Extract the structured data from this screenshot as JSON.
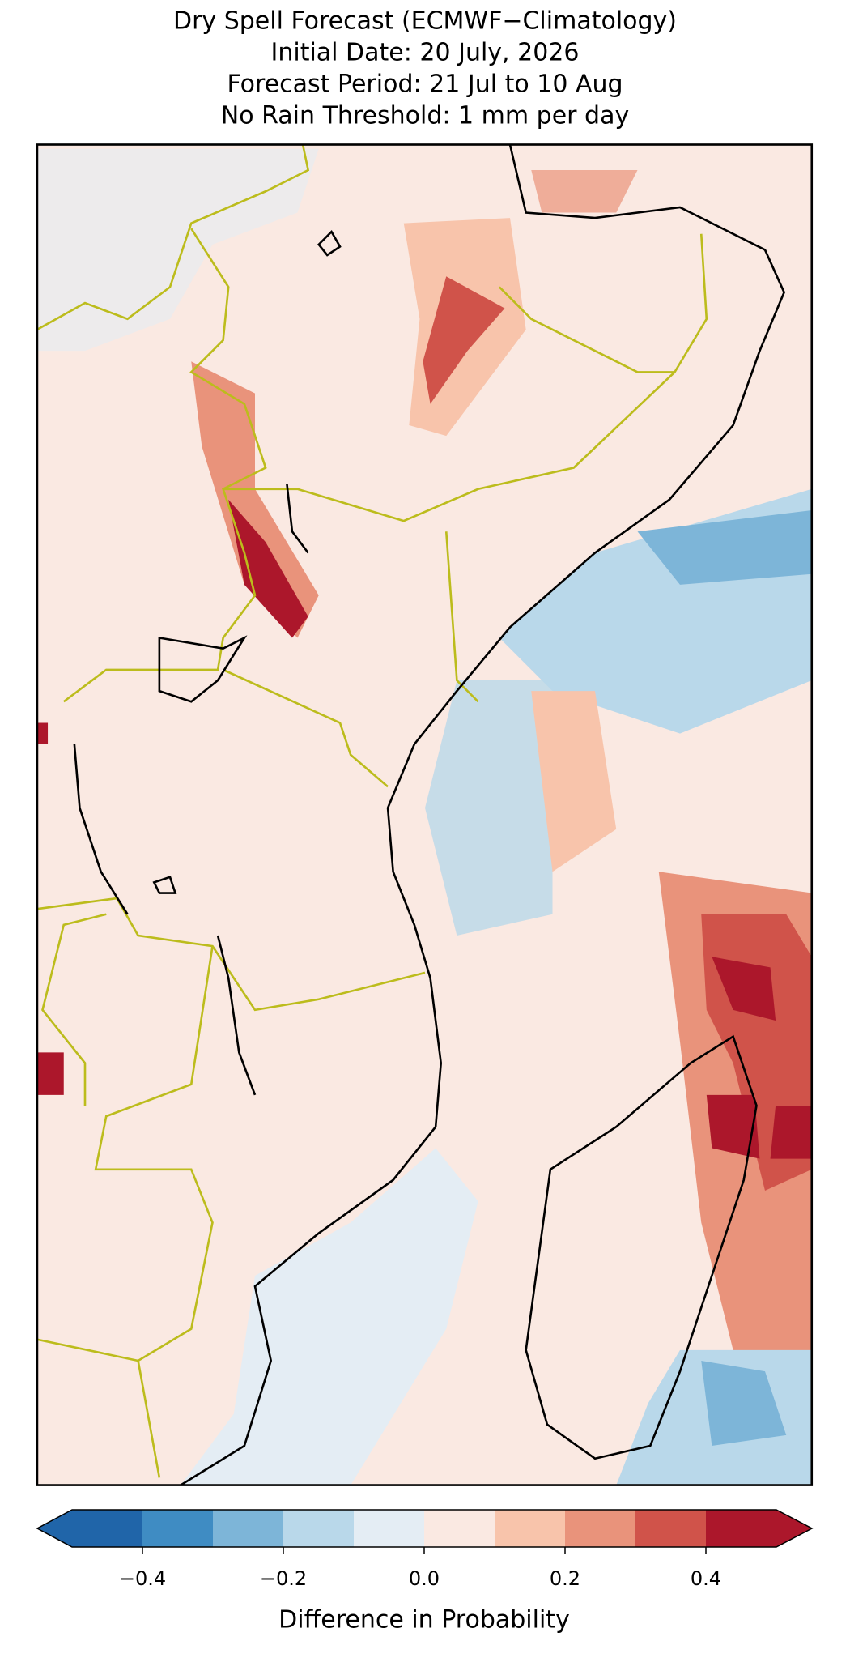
{
  "chart_data": {
    "type": "map",
    "title": [
      "Dry Spell Forecast (ECMWF−Climatology)",
      "Initial Date: 20 July, 2026",
      "Forecast Period: 21 Jul to 10 Aug",
      "No Rain Threshold: 1 mm per day"
    ],
    "colorbar": {
      "label": "Difference in Probability",
      "bounds": [
        -0.5,
        -0.4,
        -0.3,
        -0.2,
        -0.1,
        0,
        0.1,
        0.2,
        0.3,
        0.4,
        0.5
      ],
      "colors": [
        "#2065a9",
        "#3f8cc3",
        "#7db5d8",
        "#b9d8ea",
        "#e4edf4",
        "#fae9e2",
        "#f8c4ab",
        "#e9937b",
        "#d0534a",
        "#ac172b"
      ],
      "extend": "both",
      "ticks": [
        {
          "value": -0.4,
          "label": "−0.4"
        },
        {
          "value": -0.2,
          "label": "−0.2"
        },
        {
          "value": 0,
          "label": "0.0"
        },
        0.2,
        0.4
      ]
    }
  }
}
